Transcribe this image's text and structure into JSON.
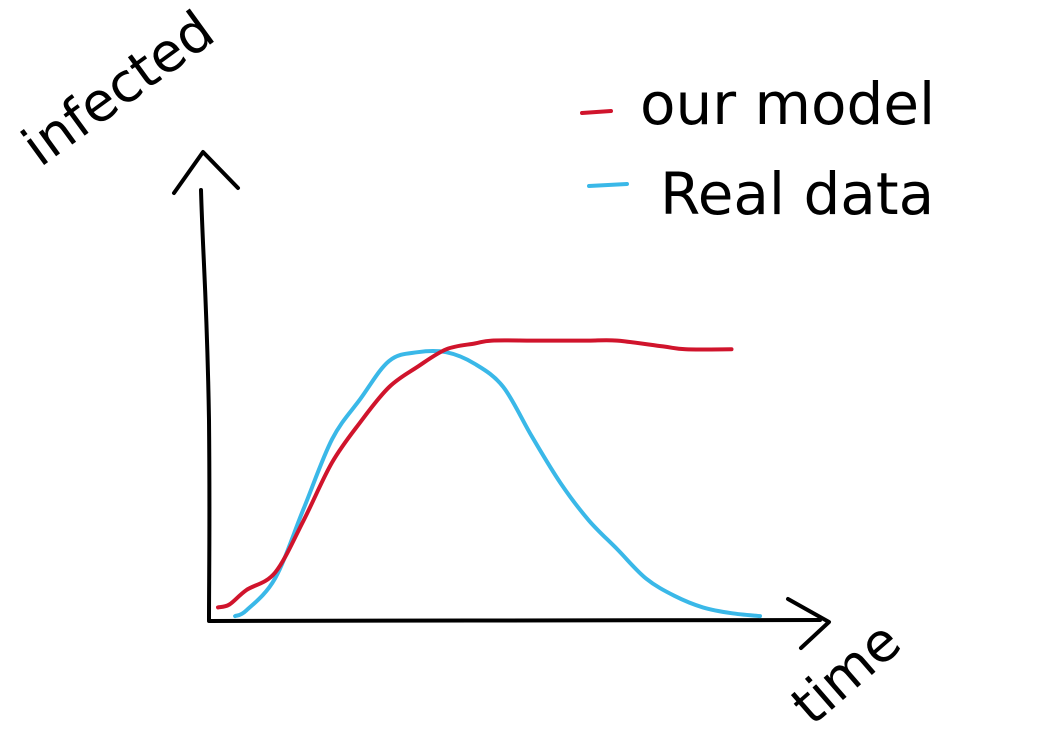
{
  "chart_data": {
    "type": "line",
    "title": "",
    "xlabel": "time",
    "ylabel": "infected",
    "grid": false,
    "legend_position": "top-right",
    "ylim": [
      0,
      100
    ],
    "series": [
      {
        "name": "our model",
        "color": "#d0142c",
        "x": [
          0,
          2,
          5,
          10,
          15,
          20,
          25,
          30,
          35,
          40,
          45,
          48,
          55,
          60,
          65,
          70,
          78,
          82,
          90
        ],
        "y": [
          4,
          5,
          10,
          16,
          34,
          54,
          68,
          80,
          87,
          93,
          95,
          96,
          96,
          96,
          96,
          96,
          94,
          93,
          93
        ]
      },
      {
        "name": "Real data",
        "color": "#3ab8e8",
        "x": [
          3,
          5,
          10,
          15,
          20,
          25,
          30,
          35,
          40,
          45,
          50,
          55,
          60,
          65,
          70,
          75,
          80,
          85,
          90,
          95
        ],
        "y": [
          1,
          3,
          14,
          38,
          62,
          76,
          89,
          92,
          92,
          88,
          80,
          63,
          47,
          34,
          24,
          14,
          8,
          4,
          2,
          1
        ]
      }
    ]
  }
}
